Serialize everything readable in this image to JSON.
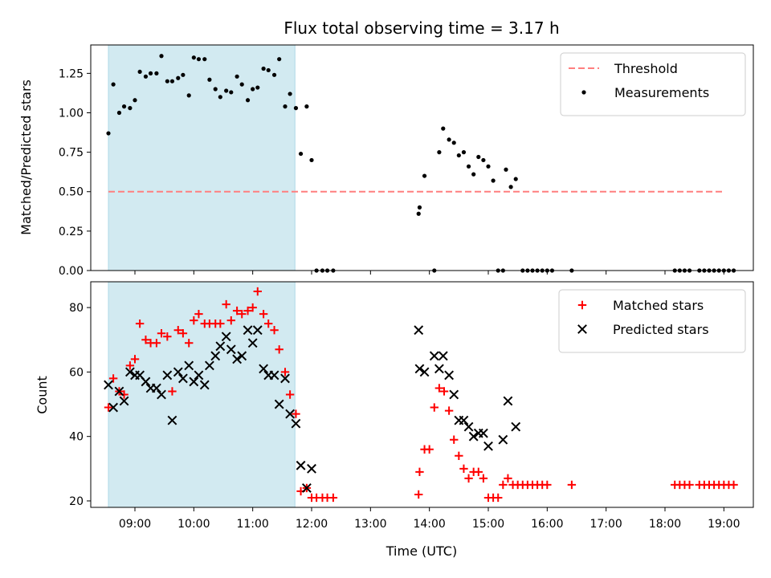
{
  "chart_data": [
    {
      "type": "scatter",
      "title": "Flux total observing time = 3.17 h",
      "xlabel": "",
      "ylabel": "Matched/Predicted stars",
      "xlim": [
        "08:15",
        "19:30"
      ],
      "ylim": [
        0,
        1.43
      ],
      "yticks": [
        0.0,
        0.25,
        0.5,
        0.75,
        1.0,
        1.25
      ],
      "ytick_labels": [
        "0.00",
        "0.25",
        "0.50",
        "0.75",
        "1.00",
        "1.25"
      ],
      "xticks": [
        "09:00",
        "10:00",
        "11:00",
        "12:00",
        "13:00",
        "14:00",
        "15:00",
        "16:00",
        "17:00",
        "18:00",
        "19:00"
      ],
      "shaded_span": [
        "08:33",
        "11:43"
      ],
      "shade_color": "#add8e6",
      "threshold": {
        "name": "Threshold",
        "value": 0.5,
        "x_range": [
          "08:33",
          "19:00"
        ],
        "color": "#ff7f7f"
      },
      "series": [
        {
          "name": "Measurements",
          "color": "#000000",
          "marker": "dot",
          "points": [
            [
              "08:33",
              0.87
            ],
            [
              "08:38",
              1.18
            ],
            [
              "08:44",
              1.0
            ],
            [
              "08:49",
              1.04
            ],
            [
              "08:55",
              1.03
            ],
            [
              "09:00",
              1.08
            ],
            [
              "09:05",
              1.26
            ],
            [
              "09:11",
              1.23
            ],
            [
              "09:16",
              1.25
            ],
            [
              "09:22",
              1.25
            ],
            [
              "09:27",
              1.36
            ],
            [
              "09:33",
              1.2
            ],
            [
              "09:38",
              1.2
            ],
            [
              "09:44",
              1.22
            ],
            [
              "09:49",
              1.24
            ],
            [
              "09:55",
              1.11
            ],
            [
              "10:00",
              1.35
            ],
            [
              "10:05",
              1.34
            ],
            [
              "10:11",
              1.34
            ],
            [
              "10:16",
              1.21
            ],
            [
              "10:22",
              1.15
            ],
            [
              "10:27",
              1.1
            ],
            [
              "10:33",
              1.14
            ],
            [
              "10:38",
              1.13
            ],
            [
              "10:44",
              1.23
            ],
            [
              "10:49",
              1.18
            ],
            [
              "10:55",
              1.08
            ],
            [
              "11:00",
              1.15
            ],
            [
              "11:05",
              1.16
            ],
            [
              "11:11",
              1.28
            ],
            [
              "11:16",
              1.27
            ],
            [
              "11:22",
              1.24
            ],
            [
              "11:27",
              1.34
            ],
            [
              "11:33",
              1.04
            ],
            [
              "11:38",
              1.12
            ],
            [
              "11:44",
              1.03
            ],
            [
              "11:49",
              0.74
            ],
            [
              "11:55",
              1.04
            ],
            [
              "12:00",
              0.7
            ],
            [
              "12:05",
              0.0
            ],
            [
              "12:11",
              0.0
            ],
            [
              "12:16",
              0.0
            ],
            [
              "12:22",
              0.0
            ],
            [
              "13:49",
              0.36
            ],
            [
              "13:50",
              0.4
            ],
            [
              "13:55",
              0.6
            ],
            [
              "14:05",
              0.0
            ],
            [
              "14:10",
              0.75
            ],
            [
              "14:14",
              0.9
            ],
            [
              "14:20",
              0.83
            ],
            [
              "14:25",
              0.81
            ],
            [
              "14:30",
              0.73
            ],
            [
              "14:35",
              0.75
            ],
            [
              "14:40",
              0.66
            ],
            [
              "14:45",
              0.61
            ],
            [
              "14:50",
              0.72
            ],
            [
              "14:55",
              0.7
            ],
            [
              "15:00",
              0.66
            ],
            [
              "15:05",
              0.57
            ],
            [
              "15:10",
              0.0
            ],
            [
              "15:15",
              0.0
            ],
            [
              "15:18",
              0.64
            ],
            [
              "15:23",
              0.53
            ],
            [
              "15:28",
              0.58
            ],
            [
              "15:35",
              0.0
            ],
            [
              "15:40",
              0.0
            ],
            [
              "15:45",
              0.0
            ],
            [
              "15:50",
              0.0
            ],
            [
              "15:55",
              0.0
            ],
            [
              "16:00",
              0.0
            ],
            [
              "16:05",
              0.0
            ],
            [
              "16:25",
              0.0
            ],
            [
              "18:10",
              0.0
            ],
            [
              "18:15",
              0.0
            ],
            [
              "18:20",
              0.0
            ],
            [
              "18:25",
              0.0
            ],
            [
              "18:35",
              0.0
            ],
            [
              "18:40",
              0.0
            ],
            [
              "18:45",
              0.0
            ],
            [
              "18:50",
              0.0
            ],
            [
              "18:55",
              0.0
            ],
            [
              "19:00",
              0.0
            ],
            [
              "19:05",
              0.0
            ],
            [
              "19:10",
              0.0
            ]
          ]
        }
      ],
      "legend": "top-right"
    },
    {
      "type": "scatter",
      "title": "",
      "xlabel": "Time (UTC)",
      "ylabel": "Count",
      "xlim": [
        "08:15",
        "19:30"
      ],
      "ylim": [
        18,
        88
      ],
      "yticks": [
        20,
        40,
        60,
        80
      ],
      "ytick_labels": [
        "20",
        "40",
        "60",
        "80"
      ],
      "xticks": [
        "09:00",
        "10:00",
        "11:00",
        "12:00",
        "13:00",
        "14:00",
        "15:00",
        "16:00",
        "17:00",
        "18:00",
        "19:00"
      ],
      "shaded_span": [
        "08:33",
        "11:43"
      ],
      "shade_color": "#add8e6",
      "series": [
        {
          "name": "Matched stars",
          "color": "#ff0000",
          "marker": "plus",
          "points": [
            [
              "08:33",
              49
            ],
            [
              "08:38",
              58
            ],
            [
              "08:44",
              54
            ],
            [
              "08:49",
              53
            ],
            [
              "08:55",
              62
            ],
            [
              "09:00",
              64
            ],
            [
              "09:05",
              75
            ],
            [
              "09:11",
              70
            ],
            [
              "09:16",
              69
            ],
            [
              "09:22",
              69
            ],
            [
              "09:27",
              72
            ],
            [
              "09:33",
              71
            ],
            [
              "09:38",
              54
            ],
            [
              "09:44",
              73
            ],
            [
              "09:49",
              72
            ],
            [
              "09:55",
              69
            ],
            [
              "10:00",
              76
            ],
            [
              "10:05",
              78
            ],
            [
              "10:11",
              75
            ],
            [
              "10:16",
              75
            ],
            [
              "10:22",
              75
            ],
            [
              "10:27",
              75
            ],
            [
              "10:33",
              81
            ],
            [
              "10:38",
              76
            ],
            [
              "10:44",
              79
            ],
            [
              "10:49",
              78
            ],
            [
              "10:55",
              79
            ],
            [
              "11:00",
              80
            ],
            [
              "11:05",
              85
            ],
            [
              "11:11",
              78
            ],
            [
              "11:16",
              75
            ],
            [
              "11:22",
              73
            ],
            [
              "11:27",
              67
            ],
            [
              "11:33",
              60
            ],
            [
              "11:38",
              53
            ],
            [
              "11:44",
              47
            ],
            [
              "11:49",
              23
            ],
            [
              "11:55",
              24
            ],
            [
              "12:00",
              21
            ],
            [
              "12:05",
              21
            ],
            [
              "12:11",
              21
            ],
            [
              "12:16",
              21
            ],
            [
              "12:22",
              21
            ],
            [
              "13:49",
              22
            ],
            [
              "13:50",
              29
            ],
            [
              "13:55",
              36
            ],
            [
              "14:00",
              36
            ],
            [
              "14:05",
              49
            ],
            [
              "14:10",
              55
            ],
            [
              "14:15",
              54
            ],
            [
              "14:20",
              48
            ],
            [
              "14:25",
              39
            ],
            [
              "14:30",
              34
            ],
            [
              "14:35",
              30
            ],
            [
              "14:40",
              27
            ],
            [
              "14:45",
              29
            ],
            [
              "14:50",
              29
            ],
            [
              "14:55",
              27
            ],
            [
              "15:00",
              21
            ],
            [
              "15:05",
              21
            ],
            [
              "15:10",
              21
            ],
            [
              "15:15",
              25
            ],
            [
              "15:20",
              27
            ],
            [
              "15:25",
              25
            ],
            [
              "15:30",
              25
            ],
            [
              "15:35",
              25
            ],
            [
              "15:40",
              25
            ],
            [
              "15:45",
              25
            ],
            [
              "15:50",
              25
            ],
            [
              "15:55",
              25
            ],
            [
              "16:00",
              25
            ],
            [
              "16:25",
              25
            ],
            [
              "18:10",
              25
            ],
            [
              "18:15",
              25
            ],
            [
              "18:20",
              25
            ],
            [
              "18:25",
              25
            ],
            [
              "18:35",
              25
            ],
            [
              "18:40",
              25
            ],
            [
              "18:45",
              25
            ],
            [
              "18:50",
              25
            ],
            [
              "18:55",
              25
            ],
            [
              "19:00",
              25
            ],
            [
              "19:05",
              25
            ],
            [
              "19:10",
              25
            ]
          ]
        },
        {
          "name": "Predicted stars",
          "color": "#000000",
          "marker": "x",
          "points": [
            [
              "08:33",
              56
            ],
            [
              "08:38",
              49
            ],
            [
              "08:44",
              54
            ],
            [
              "08:49",
              51
            ],
            [
              "08:55",
              60
            ],
            [
              "09:00",
              59
            ],
            [
              "09:05",
              59
            ],
            [
              "09:11",
              57
            ],
            [
              "09:16",
              55
            ],
            [
              "09:22",
              55
            ],
            [
              "09:27",
              53
            ],
            [
              "09:33",
              59
            ],
            [
              "09:38",
              45
            ],
            [
              "09:44",
              60
            ],
            [
              "09:49",
              58
            ],
            [
              "09:55",
              62
            ],
            [
              "10:00",
              57
            ],
            [
              "10:05",
              59
            ],
            [
              "10:11",
              56
            ],
            [
              "10:16",
              62
            ],
            [
              "10:22",
              65
            ],
            [
              "10:27",
              68
            ],
            [
              "10:33",
              71
            ],
            [
              "10:38",
              67
            ],
            [
              "10:44",
              64
            ],
            [
              "10:49",
              65
            ],
            [
              "10:55",
              73
            ],
            [
              "11:00",
              69
            ],
            [
              "11:05",
              73
            ],
            [
              "11:11",
              61
            ],
            [
              "11:16",
              59
            ],
            [
              "11:22",
              59
            ],
            [
              "11:27",
              50
            ],
            [
              "11:33",
              58
            ],
            [
              "11:38",
              47
            ],
            [
              "11:44",
              44
            ],
            [
              "11:49",
              31
            ],
            [
              "11:55",
              24
            ],
            [
              "12:00",
              30
            ],
            [
              "13:49",
              73
            ],
            [
              "13:50",
              61
            ],
            [
              "13:55",
              60
            ],
            [
              "14:05",
              65
            ],
            [
              "14:10",
              61
            ],
            [
              "14:14",
              65
            ],
            [
              "14:20",
              59
            ],
            [
              "14:25",
              53
            ],
            [
              "14:30",
              45
            ],
            [
              "14:35",
              45
            ],
            [
              "14:40",
              43
            ],
            [
              "14:45",
              40
            ],
            [
              "14:50",
              41
            ],
            [
              "14:55",
              41
            ],
            [
              "15:00",
              37
            ],
            [
              "15:15",
              39
            ],
            [
              "15:20",
              51
            ],
            [
              "15:28",
              43
            ]
          ]
        }
      ],
      "legend": "top-right"
    }
  ]
}
